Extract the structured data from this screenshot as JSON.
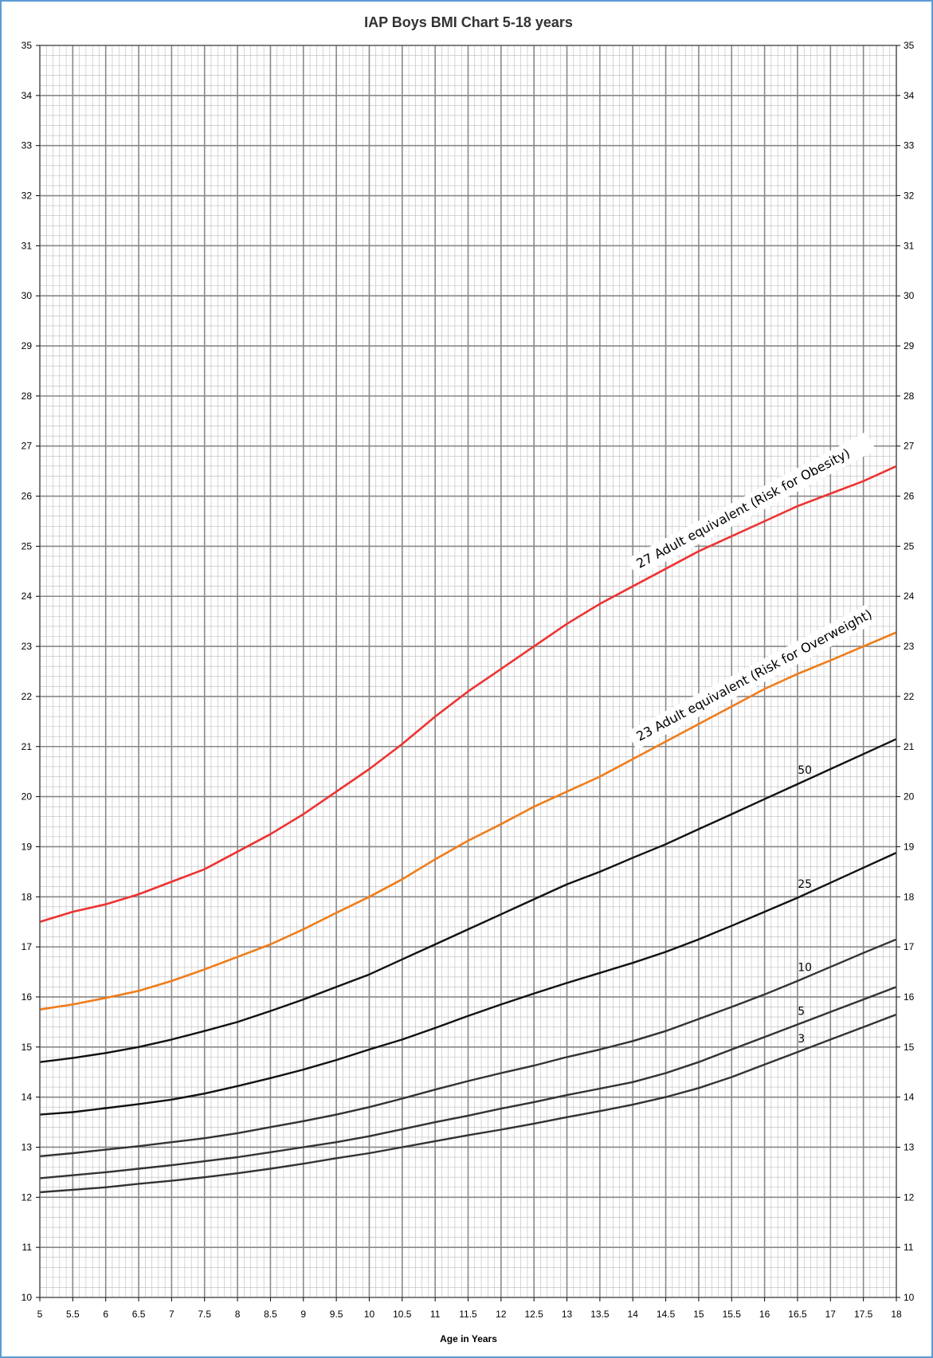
{
  "chart_data": {
    "type": "line",
    "title": "IAP Boys  BMI Chart 5-18  years",
    "xlabel": "Age in Years",
    "ylabel": "",
    "xlim": [
      5,
      18
    ],
    "ylim": [
      10,
      35
    ],
    "x_ticks": [
      5,
      5.5,
      6,
      6.5,
      7,
      7.5,
      8,
      8.5,
      9,
      9.5,
      10,
      10.5,
      11,
      11.5,
      12,
      12.5,
      13,
      13.5,
      14,
      14.5,
      15,
      15.5,
      16,
      16.5,
      17,
      17.5,
      18
    ],
    "x_tick_labels": [
      "5",
      "5.5",
      "6",
      "6.5",
      "7",
      "7.5",
      "8",
      "8.5",
      "9",
      "9.5",
      "10",
      "10.5",
      "11",
      "11.5",
      "12",
      "12.5",
      "13",
      "13.5",
      "14",
      "14.5",
      "15",
      "15.5",
      "16",
      "16.5",
      "17",
      "17.5",
      "18"
    ],
    "y_ticks": [
      10,
      11,
      12,
      13,
      14,
      15,
      16,
      17,
      18,
      19,
      20,
      21,
      22,
      23,
      24,
      25,
      26,
      27,
      28,
      29,
      30,
      31,
      32,
      33,
      34,
      35
    ],
    "y_tick_labels": [
      "10",
      "11",
      "12",
      "13",
      "14",
      "15",
      "16",
      "17",
      "18",
      "19",
      "20",
      "21",
      "22",
      "23",
      "24",
      "25",
      "26",
      "27",
      "28",
      "29",
      "30",
      "31",
      "32",
      "33",
      "34",
      "35"
    ],
    "grid": true,
    "legend": "none",
    "x": [
      5,
      5.5,
      6,
      6.5,
      7,
      7.5,
      8,
      8.5,
      9,
      9.5,
      10,
      10.5,
      11,
      11.5,
      12,
      12.5,
      13,
      13.5,
      14,
      14.5,
      15,
      15.5,
      16,
      16.5,
      17,
      17.5,
      18
    ],
    "series": [
      {
        "label": "27 Adult equivalent (Risk for Obesity)",
        "color": "#ee3333",
        "values": [
          17.5,
          17.7,
          17.85,
          18.05,
          18.3,
          18.55,
          18.9,
          19.25,
          19.65,
          20.1,
          20.55,
          21.05,
          21.6,
          22.1,
          22.55,
          23.0,
          23.45,
          23.85,
          24.2,
          24.55,
          24.9,
          25.2,
          25.5,
          25.8,
          26.05,
          26.3,
          26.6
        ]
      },
      {
        "label": "23 Adult equivalent (Risk for Overweight)",
        "color": "#f07c1a",
        "values": [
          15.75,
          15.85,
          15.98,
          16.12,
          16.32,
          16.55,
          16.8,
          17.05,
          17.35,
          17.68,
          18.0,
          18.35,
          18.75,
          19.12,
          19.45,
          19.8,
          20.1,
          20.4,
          20.75,
          21.1,
          21.45,
          21.8,
          22.15,
          22.45,
          22.72,
          23.0,
          23.28
        ]
      },
      {
        "label": "50",
        "color": "#111111",
        "values": [
          14.7,
          14.78,
          14.88,
          15.0,
          15.15,
          15.32,
          15.5,
          15.72,
          15.95,
          16.2,
          16.45,
          16.75,
          17.05,
          17.35,
          17.65,
          17.95,
          18.25,
          18.5,
          18.78,
          19.05,
          19.35,
          19.65,
          19.95,
          20.25,
          20.55,
          20.85,
          21.15
        ]
      },
      {
        "label": "25",
        "color": "#111111",
        "values": [
          13.65,
          13.7,
          13.78,
          13.86,
          13.95,
          14.07,
          14.22,
          14.38,
          14.55,
          14.74,
          14.95,
          15.15,
          15.38,
          15.62,
          15.85,
          16.07,
          16.28,
          16.48,
          16.68,
          16.9,
          17.15,
          17.42,
          17.7,
          17.98,
          18.28,
          18.58,
          18.88
        ]
      },
      {
        "label": "10",
        "color": "#333333",
        "values": [
          12.82,
          12.88,
          12.95,
          13.02,
          13.1,
          13.18,
          13.28,
          13.4,
          13.52,
          13.65,
          13.8,
          13.97,
          14.15,
          14.32,
          14.48,
          14.63,
          14.8,
          14.95,
          15.12,
          15.32,
          15.56,
          15.8,
          16.05,
          16.32,
          16.6,
          16.88,
          17.15
        ]
      },
      {
        "label": "5",
        "color": "#333333",
        "values": [
          12.38,
          12.44,
          12.5,
          12.57,
          12.64,
          12.72,
          12.8,
          12.9,
          13.0,
          13.1,
          13.22,
          13.36,
          13.5,
          13.63,
          13.77,
          13.9,
          14.04,
          14.17,
          14.3,
          14.48,
          14.7,
          14.95,
          15.2,
          15.45,
          15.7,
          15.95,
          16.2
        ]
      },
      {
        "label": "3",
        "color": "#333333",
        "values": [
          12.1,
          12.15,
          12.2,
          12.27,
          12.33,
          12.4,
          12.48,
          12.57,
          12.67,
          12.78,
          12.88,
          13.0,
          13.12,
          13.24,
          13.35,
          13.47,
          13.6,
          13.72,
          13.85,
          14.0,
          14.18,
          14.4,
          14.65,
          14.9,
          15.15,
          15.4,
          15.65
        ]
      }
    ],
    "label_x": {
      "27 Adult equivalent (Risk for Obesity)": 14.1,
      "23 Adult equivalent (Risk for Overweight)": 14.1,
      "50": 16.6,
      "25": 16.6,
      "10": 16.6,
      "5": 16.6,
      "3": 16.6
    }
  },
  "colors": {
    "frame_border": "#5b9bd5",
    "grid_major": "#888888",
    "grid_minor": "#bbbbbb"
  }
}
